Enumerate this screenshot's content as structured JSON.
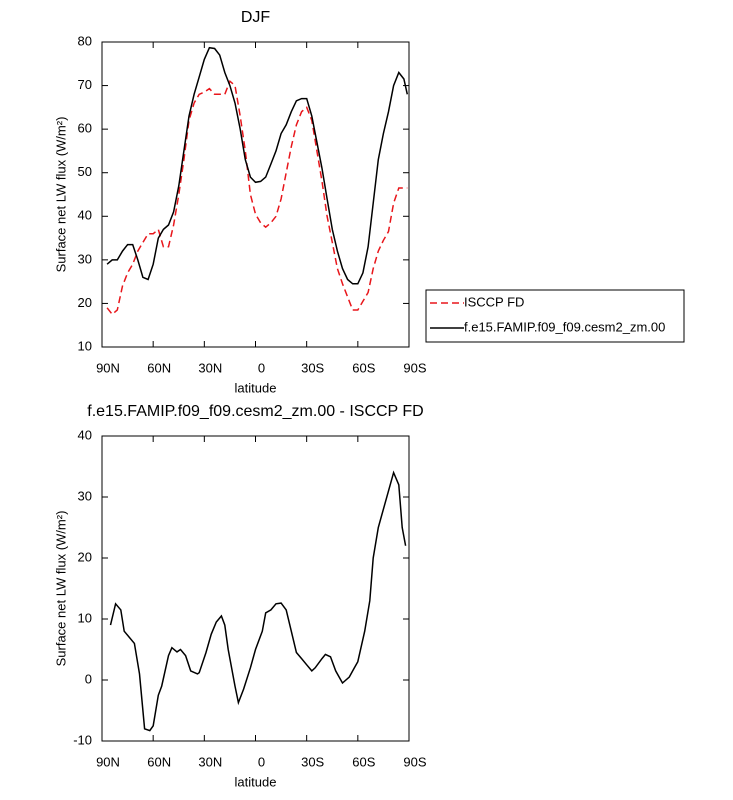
{
  "chart_data": [
    {
      "type": "line",
      "title": "DJF",
      "x_label": "latitude",
      "y_label": "Surface net LW flux (W/m²)",
      "x": [
        87,
        84,
        81,
        78,
        75,
        72,
        69,
        66,
        63,
        60,
        57,
        54,
        51,
        48,
        45,
        42,
        39,
        36,
        33,
        30,
        27,
        24,
        21,
        18,
        15,
        12,
        9,
        6,
        3,
        0,
        -3,
        -6,
        -9,
        -12,
        -15,
        -18,
        -21,
        -24,
        -27,
        -30,
        -33,
        -36,
        -39,
        -42,
        -45,
        -48,
        -51,
        -54,
        -57,
        -60,
        -63,
        -66,
        -69,
        -72,
        -75,
        -78,
        -81,
        -84,
        -87,
        -89
      ],
      "series": [
        {
          "name": "ISCCP FD",
          "color": "#e8161b",
          "style": "dashed",
          "values": [
            19,
            17.5,
            18.5,
            24,
            27,
            29,
            32,
            34,
            36,
            36,
            37,
            33,
            33,
            38,
            45,
            53,
            62,
            66,
            68,
            68.5,
            69.3,
            68,
            68,
            68,
            71,
            70,
            63,
            55,
            45,
            40.5,
            38.5,
            37.5,
            38.5,
            40,
            44,
            50,
            56,
            61,
            64,
            65,
            62,
            55,
            48,
            40,
            34,
            28,
            24.5,
            21.5,
            18.5,
            18.5,
            20.5,
            22.5,
            28,
            32,
            34.5,
            36.5,
            43,
            46.5,
            46.5,
            46.5
          ]
        },
        {
          "name": "f.e15.FAMIP.f09_f09.cesm2_zm.00",
          "color": "#000000",
          "style": "solid",
          "values": [
            29,
            30,
            30,
            32,
            33.5,
            33.5,
            30,
            26,
            25.5,
            29,
            35,
            37,
            38,
            41,
            47,
            55,
            63,
            68,
            72,
            76,
            78.7,
            78.5,
            77,
            73,
            70,
            66,
            60,
            53,
            49,
            47.8,
            48,
            49,
            52,
            55,
            59,
            61,
            64,
            66.5,
            67,
            67,
            63,
            57,
            51,
            44,
            37,
            32,
            28,
            25.5,
            24.5,
            24.5,
            27,
            33,
            43,
            53,
            59,
            64,
            70,
            73,
            71.5,
            68
          ]
        }
      ],
      "xlim": [
        90,
        -90
      ],
      "xticks": [
        {
          "value": 90,
          "label": "90N"
        },
        {
          "value": 60,
          "label": "60N"
        },
        {
          "value": 30,
          "label": "30N"
        },
        0,
        {
          "value": -30,
          "label": "30S"
        },
        {
          "value": -60,
          "label": "60S"
        },
        {
          "value": -90,
          "label": "90S"
        }
      ],
      "ylim": [
        10,
        80
      ],
      "yticks": [
        10,
        20,
        30,
        40,
        50,
        60,
        70,
        80
      ],
      "legend": "right"
    },
    {
      "type": "line",
      "title": "f.e15.FAMIP.f09_f09.cesm2_zm.00 - ISCCP FD",
      "x_label": "latitude",
      "y_label": "Surface net LW flux (W/m²)",
      "x": [
        85,
        82,
        79,
        77,
        71,
        68,
        65,
        62,
        60,
        57,
        55,
        51,
        49,
        46,
        44,
        41,
        38,
        34,
        33,
        29,
        26,
        23,
        20,
        18,
        16,
        12,
        10,
        7,
        3,
        0,
        -4,
        -6,
        -9,
        -12,
        -15,
        -18,
        -21,
        -24,
        -27,
        -30,
        -33,
        -35,
        -39,
        -41,
        -44,
        -47,
        -50,
        -51,
        -55,
        -58,
        -60,
        -64,
        -67,
        -69,
        -72,
        -75,
        -78,
        -81,
        -84,
        -86,
        -88
      ],
      "series": [
        {
          "name": "f.e15.FAMIP.f09_f09.cesm2_zm.00 - ISCCP FD",
          "color": "#000000",
          "style": "solid",
          "values": [
            9,
            12.5,
            11.5,
            8,
            6,
            1,
            -8,
            -8.3,
            -7.5,
            -2.5,
            -1,
            4,
            5.3,
            4.6,
            5,
            4,
            1.5,
            1,
            1.2,
            4.5,
            7.5,
            9.5,
            10.5,
            9,
            5,
            -1,
            -3.7,
            -1.5,
            2,
            5,
            8,
            11,
            11.5,
            12.5,
            12.6,
            11.5,
            8,
            4.5,
            3.5,
            2.5,
            1.5,
            2,
            3.5,
            4.2,
            3.8,
            1.5,
            0,
            -0.5,
            0.5,
            2,
            3,
            8,
            13,
            20,
            25,
            28,
            31,
            34,
            32,
            25,
            22
          ]
        }
      ],
      "xlim": [
        90,
        -90
      ],
      "xticks": [
        {
          "value": 90,
          "label": "90N"
        },
        {
          "value": 60,
          "label": "60N"
        },
        {
          "value": 30,
          "label": "30N"
        },
        0,
        {
          "value": -30,
          "label": "30S"
        },
        {
          "value": -60,
          "label": "60S"
        },
        {
          "value": -90,
          "label": "90S"
        }
      ],
      "ylim": [
        -10,
        40
      ],
      "yticks": [
        -10,
        0,
        10,
        20,
        30,
        40
      ]
    }
  ]
}
